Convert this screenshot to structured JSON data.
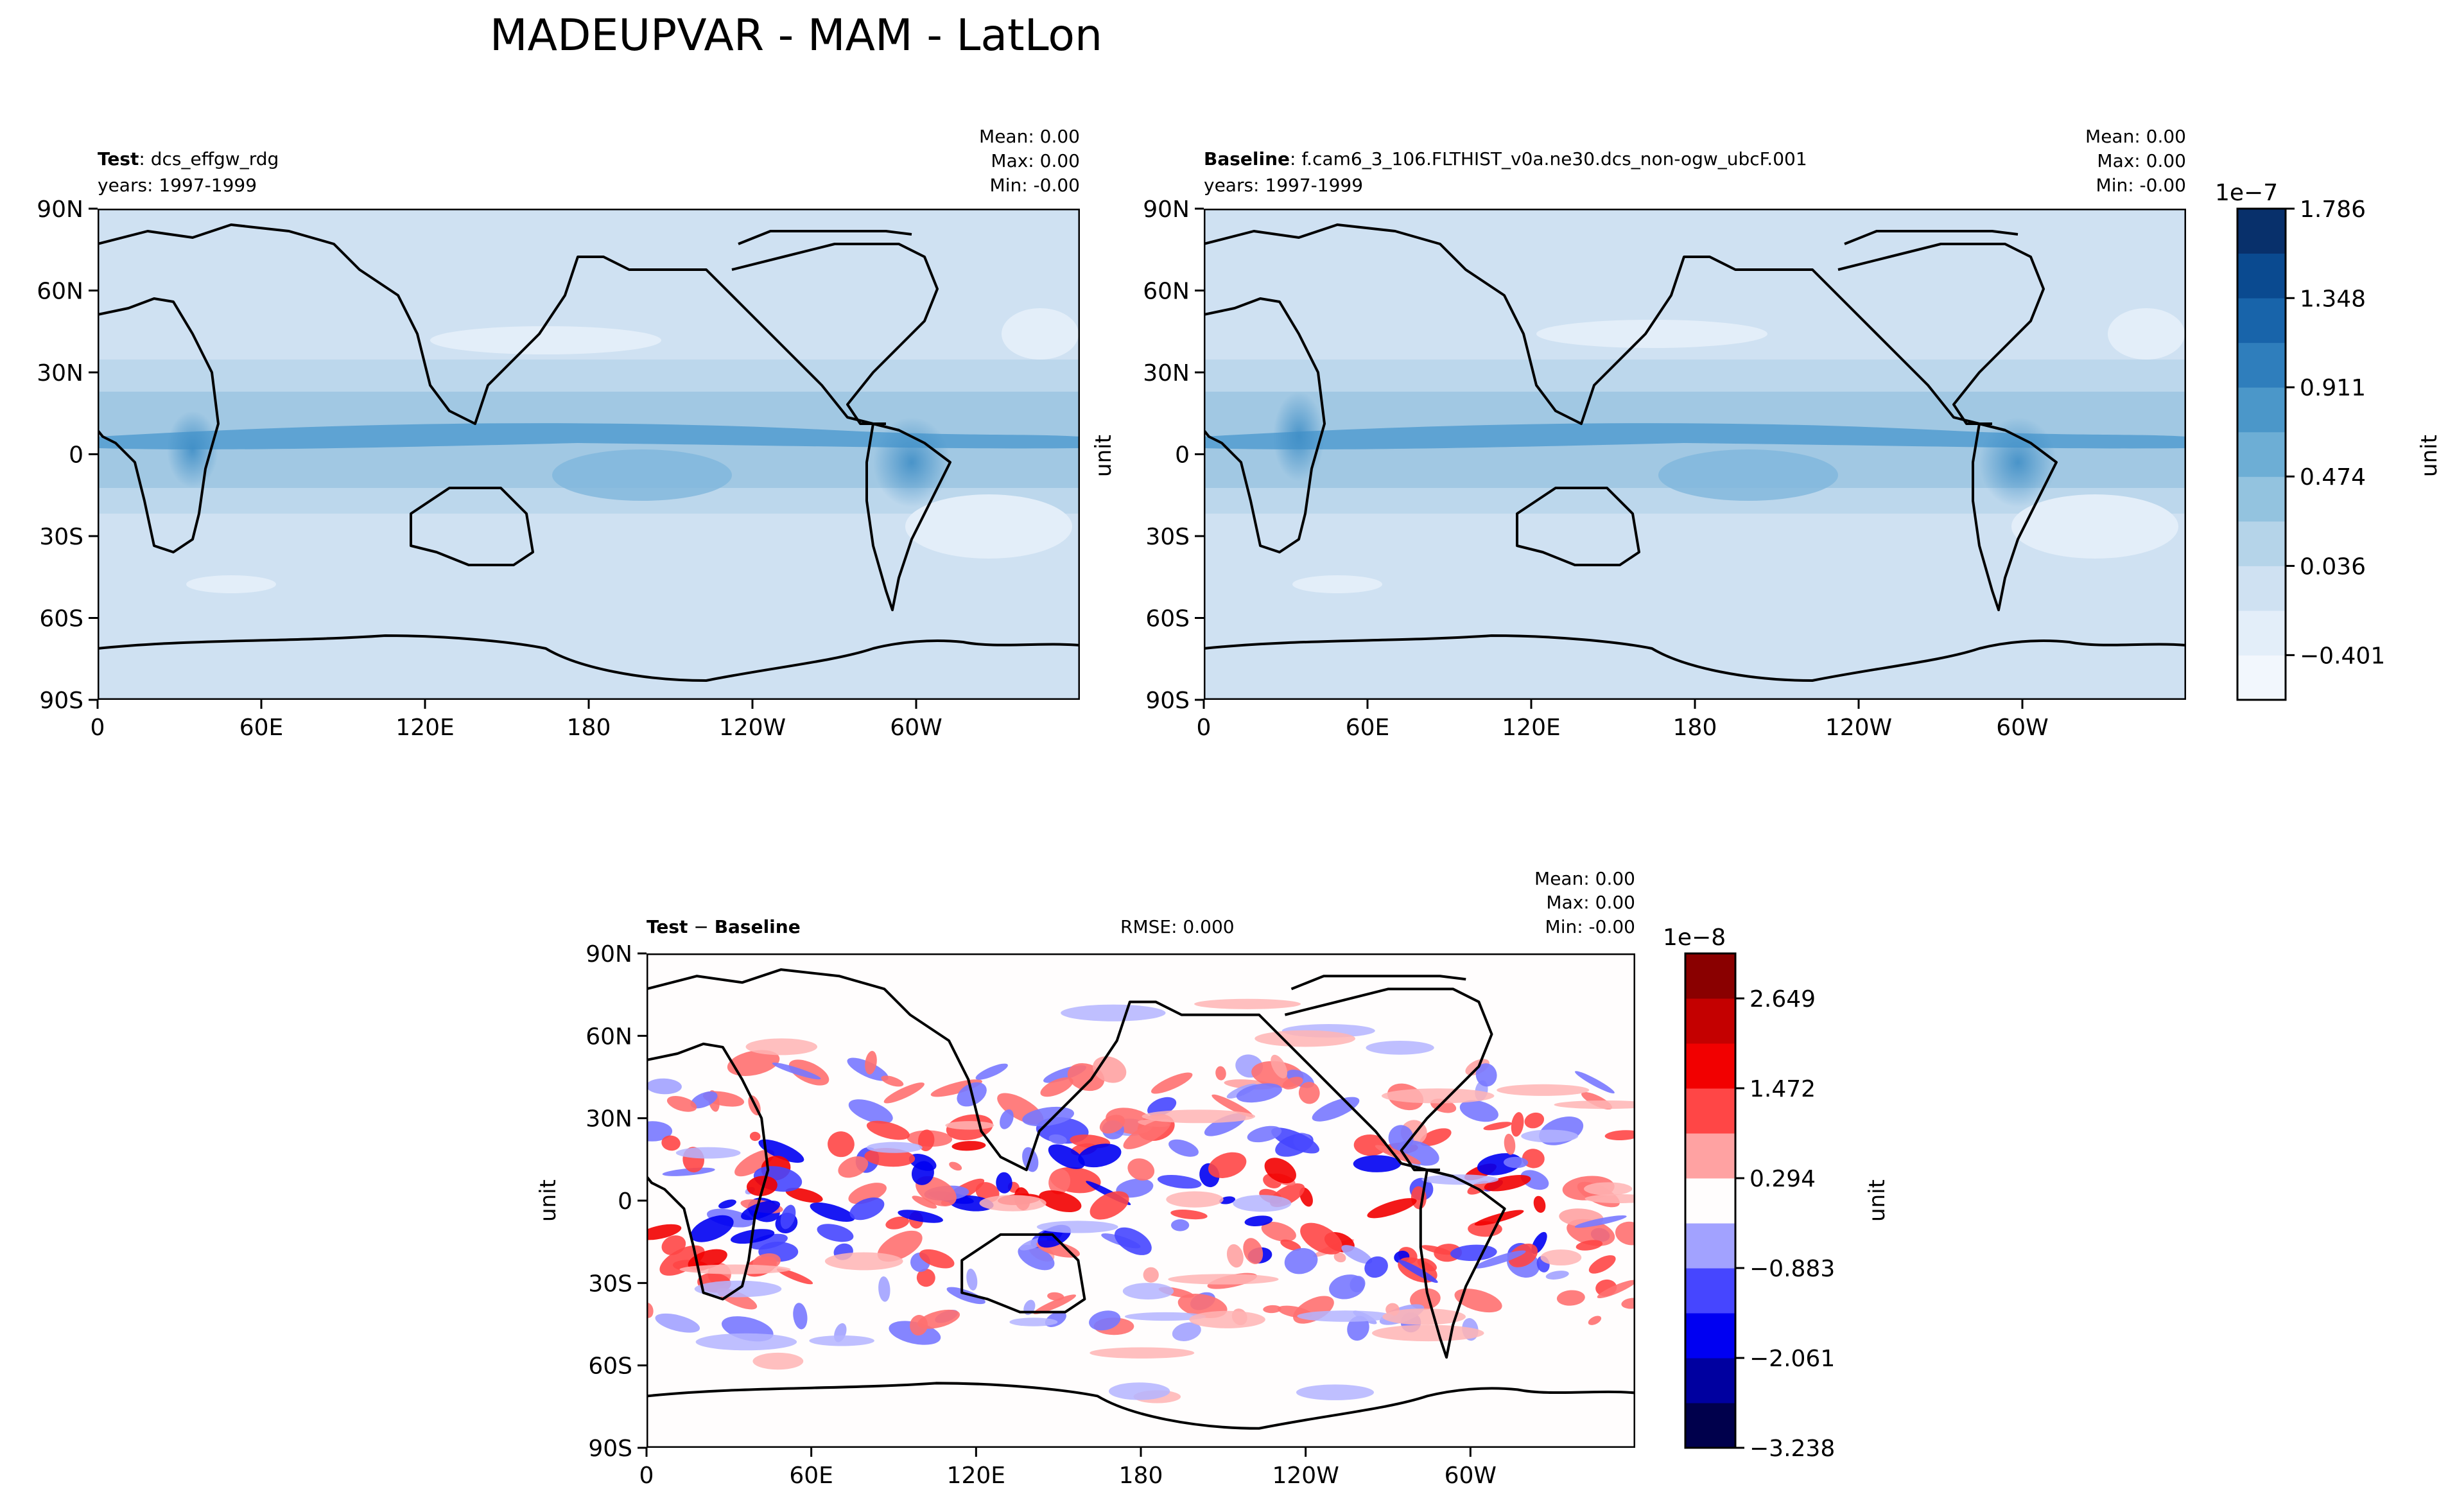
{
  "figure": {
    "suptitle": "MADEUPVAR - MAM - LatLon"
  },
  "axes_ticks": {
    "lat": [
      "90N",
      "60N",
      "30N",
      "0",
      "30S",
      "60S",
      "90S"
    ],
    "lon": [
      "0",
      "60E",
      "120E",
      "180",
      "120W",
      "60W"
    ]
  },
  "panels": {
    "test": {
      "title_bold": "Test",
      "title_rest": ": dcs_effgw_rdg",
      "years": "years: 1997-1999",
      "mean": "Mean:  0.00",
      "max": "Max:  0.00",
      "min": "Min: -0.00"
    },
    "baseline": {
      "title_bold": "Baseline",
      "title_rest": ": f.cam6_3_106.FLTHIST_v0a.ne30.dcs_non-ogw_ubcF.001",
      "years": "years: 1997-1999",
      "mean": "Mean:  0.00",
      "max": "Max:  0.00",
      "min": "Min: -0.00"
    },
    "diff": {
      "title_bold1": "Test",
      "title_sep": " − ",
      "title_bold2": "Baseline",
      "rmse": "RMSE: 0.000",
      "mean": "Mean:  0.00",
      "max": "Max:  0.00",
      "min": "Min: -0.00"
    }
  },
  "chart_data": [
    {
      "type": "heatmap",
      "name": "test-map",
      "title": "Test: dcs_effgw_rdg",
      "colormap": "Blues",
      "x_range": [
        0,
        360
      ],
      "y_range": [
        -90,
        90
      ],
      "x_ticks": [
        "0",
        "60E",
        "120E",
        "180",
        "120W",
        "60W"
      ],
      "y_ticks": [
        "90N",
        "60N",
        "30N",
        "0",
        "30S",
        "60S",
        "90S"
      ]
    },
    {
      "type": "heatmap",
      "name": "baseline-map",
      "title": "Baseline: f.cam6_3_106.FLTHIST_v0a.ne30.dcs_non-ogw_ubcF.001",
      "colormap": "Blues",
      "x_range": [
        0,
        360
      ],
      "y_range": [
        -90,
        90
      ],
      "x_ticks": [
        "0",
        "60E",
        "120E",
        "180",
        "120W",
        "60W"
      ],
      "y_ticks": [
        "90N",
        "60N",
        "30N",
        "0",
        "30S",
        "60S",
        "90S"
      ]
    },
    {
      "type": "heatmap",
      "name": "diff-map",
      "title": "Test − Baseline",
      "colormap": "seismic",
      "x_range": [
        0,
        360
      ],
      "y_range": [
        -90,
        90
      ],
      "x_ticks": [
        "0",
        "60E",
        "120E",
        "180",
        "120W",
        "60W"
      ],
      "y_ticks": [
        "90N",
        "60N",
        "30N",
        "0",
        "30S",
        "60S",
        "90S"
      ]
    }
  ],
  "colorbars": {
    "main": {
      "exponent": "1e−7",
      "label": "unit",
      "tick_labels": [
        "1.786",
        "1.348",
        "0.911",
        "0.474",
        "0.036",
        "−0.401"
      ],
      "tick_values": [
        1.786,
        1.348,
        0.911,
        0.474,
        0.036,
        -0.401
      ],
      "range": [
        -0.62,
        1.786
      ],
      "colors": [
        "#f2f7fd",
        "#e3eef9",
        "#cfe1f2",
        "#b5d4e9",
        "#93c3df",
        "#6daed5",
        "#4b97c9",
        "#2f7ebc",
        "#1864aa",
        "#0a4a90",
        "#08306b"
      ]
    },
    "diff": {
      "exponent": "1e−8",
      "label": "unit",
      "tick_labels": [
        "2.649",
        "1.472",
        "0.294",
        "−0.883",
        "−2.061",
        "−3.238"
      ],
      "tick_values": [
        2.649,
        1.472,
        0.294,
        -0.883,
        -2.061,
        -3.238
      ],
      "range": [
        -3.238,
        3.238
      ],
      "colors": [
        "#00004c",
        "#0000a0",
        "#0000f2",
        "#4646ff",
        "#a2a2ff",
        "#fffdfd",
        "#ffa2a2",
        "#ff4646",
        "#f20000",
        "#c40000",
        "#8a0000"
      ]
    }
  },
  "ylabel": "unit"
}
